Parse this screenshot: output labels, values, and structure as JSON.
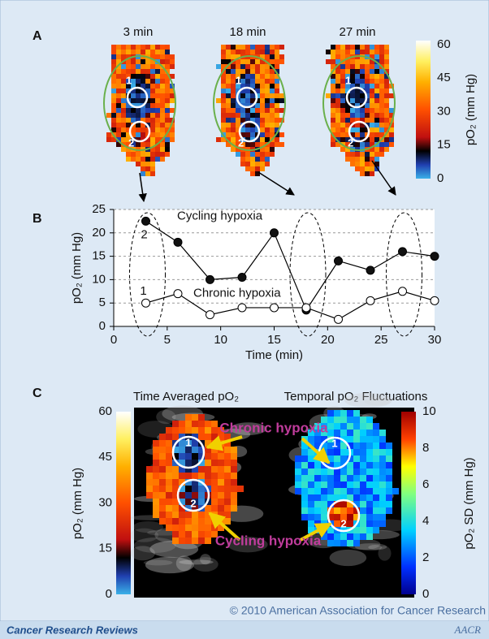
{
  "panel_labels": [
    "A",
    "B",
    "C"
  ],
  "panel_a": {
    "time_labels": [
      "3 min",
      "18 min",
      "27 min"
    ],
    "roi_labels": [
      "1",
      "2"
    ],
    "colorbar": {
      "label": "pO₂ (mm Hg)",
      "ticks": [
        0,
        15,
        30,
        45,
        60
      ]
    }
  },
  "chart_data": {
    "type": "line",
    "x_label": "Time (min)",
    "y_label": "pO₂ (mm Hg)",
    "x": [
      3,
      6,
      9,
      12,
      15,
      18,
      21,
      24,
      27,
      30
    ],
    "series": [
      {
        "name": "Cycling hypoxia",
        "color": "#111111",
        "values": [
          22.5,
          18,
          10,
          10.5,
          20,
          3.5,
          14,
          12,
          16,
          15
        ]
      },
      {
        "name": "Chronic hypoxia",
        "color": "#ffffff",
        "values": [
          5,
          7,
          2.5,
          4,
          4,
          4,
          1.5,
          5.5,
          7.5,
          5.5
        ]
      }
    ],
    "series_labels": [
      "2",
      "1"
    ],
    "xlim": [
      0,
      30
    ],
    "xticks": [
      0,
      5,
      10,
      15,
      20,
      25,
      30
    ],
    "ylim": [
      0,
      25
    ],
    "yticks": [
      0,
      5,
      10,
      15,
      20,
      25
    ],
    "grid": true
  },
  "panel_c": {
    "titles": [
      "Time Averaged pO₂",
      "Temporal pO₂ Fluctuations"
    ],
    "annotations": [
      "Chronic hypoxia",
      "Cycling hypoxia"
    ],
    "roi_labels": [
      "1",
      "2"
    ],
    "left_colorbar": {
      "label": "pO₂ (mm Hg)",
      "ticks": [
        0,
        15,
        30,
        45,
        60
      ]
    },
    "right_colorbar": {
      "label": "pO₂ SD (mm Hg)",
      "ticks": [
        0,
        2,
        4,
        6,
        8,
        10
      ]
    }
  },
  "footer": {
    "copyright": "© 2010 American Association for Cancer Research",
    "journal": "Cancer Research Reviews",
    "logo": "AACR"
  }
}
